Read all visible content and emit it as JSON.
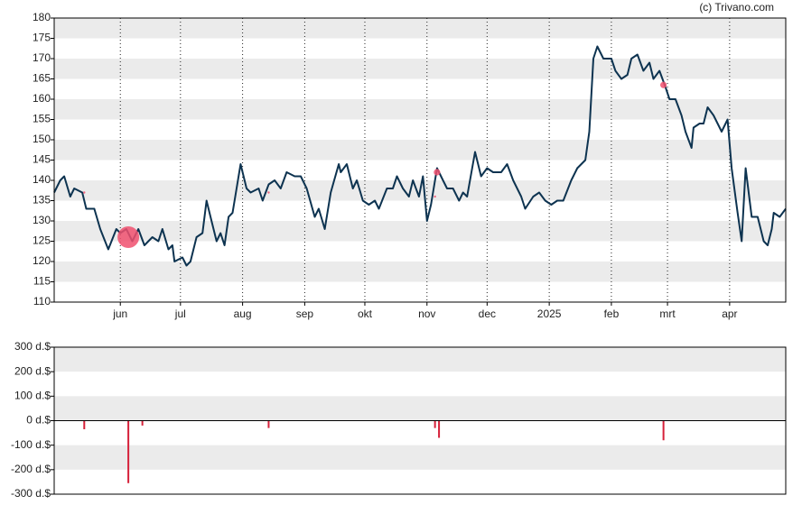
{
  "watermark": "(c) Trivano.com",
  "chart_data": [
    {
      "type": "line",
      "xlim": [
        0,
        365
      ],
      "xticks": [
        {
          "value": 33,
          "label": "jun"
        },
        {
          "value": 63,
          "label": "jul"
        },
        {
          "value": 94,
          "label": "aug"
        },
        {
          "value": 125,
          "label": "sep"
        },
        {
          "value": 155,
          "label": "okt"
        },
        {
          "value": 186,
          "label": "nov"
        },
        {
          "value": 216,
          "label": "dec"
        },
        {
          "value": 247,
          "label": "2025"
        },
        {
          "value": 278,
          "label": "feb"
        },
        {
          "value": 306,
          "label": "mrt"
        },
        {
          "value": 337,
          "label": "apr"
        }
      ],
      "ylim": [
        110,
        180
      ],
      "yticks": [
        110,
        115,
        120,
        125,
        130,
        135,
        140,
        145,
        150,
        155,
        160,
        165,
        170,
        175,
        180
      ],
      "grid": true,
      "series": [
        {
          "color": "#0d3350",
          "x": [
            0,
            3,
            5,
            8,
            10,
            14,
            16,
            20,
            23,
            27,
            31,
            33,
            36,
            39,
            42,
            45,
            49,
            52,
            54,
            57,
            59,
            60,
            64,
            66,
            68,
            71,
            74,
            76,
            78,
            81,
            83,
            85,
            87,
            89,
            93,
            96,
            98,
            102,
            104,
            107,
            110,
            113,
            116,
            120,
            123,
            126,
            130,
            132,
            135,
            138,
            142,
            143,
            146,
            149,
            151,
            154,
            157,
            160,
            162,
            166,
            169,
            171,
            174,
            177,
            179,
            182,
            184,
            186,
            188,
            191,
            194,
            196,
            199,
            202,
            204,
            206,
            210,
            213,
            216,
            219,
            223,
            226,
            229,
            233,
            235,
            239,
            242,
            245,
            248,
            251,
            254,
            258,
            261,
            265,
            267,
            269,
            271,
            274,
            278,
            280,
            283,
            286,
            288,
            291,
            294,
            297,
            299,
            302,
            305,
            307,
            310,
            313,
            315,
            318,
            319,
            322,
            324,
            326,
            329,
            332,
            333,
            336,
            338,
            341,
            343,
            345,
            348,
            351,
            354,
            356,
            358,
            359,
            362,
            365
          ],
          "values": [
            137,
            140,
            141,
            136,
            138,
            137,
            133,
            133,
            128,
            123,
            128,
            127,
            128,
            125,
            128,
            124,
            126,
            125,
            128,
            123,
            124,
            120,
            121,
            119,
            120,
            126,
            127,
            135,
            131,
            125,
            127,
            124,
            131,
            132,
            144,
            138,
            137,
            138,
            135,
            139,
            140,
            138,
            142,
            141,
            141,
            138,
            131,
            133,
            128,
            137,
            144,
            142,
            144,
            138,
            140,
            135,
            134,
            135,
            133,
            138,
            138,
            141,
            138,
            136,
            140,
            136,
            141,
            130,
            134,
            143,
            140,
            138,
            138,
            135,
            137,
            136,
            147,
            141,
            143,
            142,
            142,
            144,
            140,
            136,
            133,
            136,
            137,
            135,
            134,
            135,
            135,
            140,
            143,
            145,
            152,
            170,
            173,
            170,
            170,
            167,
            165,
            166,
            170,
            171,
            167,
            169,
            165,
            167,
            163,
            160,
            160,
            156,
            152,
            148,
            153,
            154,
            154,
            158,
            156,
            153,
            152,
            155,
            143,
            132,
            125,
            143,
            131,
            131,
            125,
            124,
            128,
            132,
            131,
            133
          ]
        }
      ],
      "markers": {
        "color": "#f0506e",
        "x": [
          15,
          37,
          107,
          190,
          191,
          304
        ],
        "values": [
          137,
          126,
          137,
          136,
          142,
          163.5
        ],
        "sizes": [
          1,
          10,
          1,
          1,
          3,
          3
        ]
      }
    },
    {
      "type": "bar",
      "xlim": [
        0,
        365
      ],
      "ylim": [
        -300,
        300
      ],
      "yticks": [
        {
          "value": -300,
          "label": "-300 d.$"
        },
        {
          "value": -200,
          "label": "-200 d.$"
        },
        {
          "value": -100,
          "label": "-100 d.$"
        },
        {
          "value": 0,
          "label": "0 d.$"
        },
        {
          "value": 100,
          "label": "100 d.$"
        },
        {
          "value": 200,
          "label": "200 d.$"
        },
        {
          "value": 300,
          "label": "300 d.$"
        }
      ],
      "grid": true,
      "color": "#d6213a",
      "x": [
        15,
        37,
        44,
        107,
        190,
        192,
        304
      ],
      "values": [
        -35,
        -255,
        -20,
        -30,
        -30,
        -70,
        -80
      ]
    }
  ]
}
